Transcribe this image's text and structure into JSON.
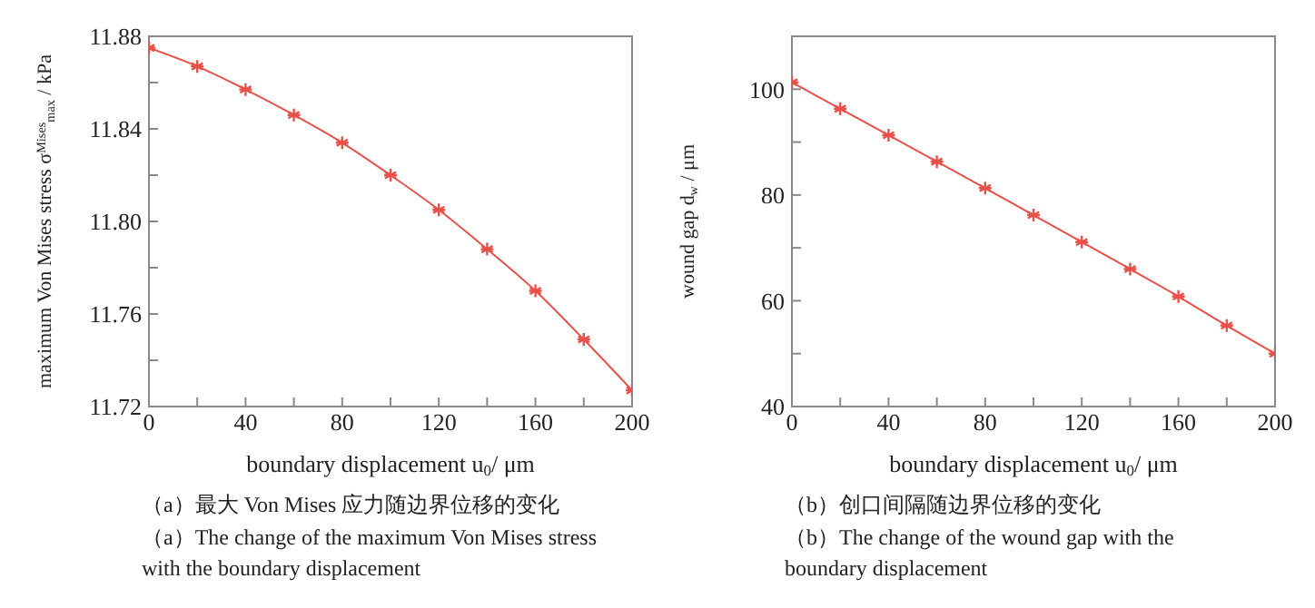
{
  "chart_data": [
    {
      "type": "line",
      "xlabel": "boundary displacement u$_{0}$/ μm",
      "ylabel": "maximum Von Mises stress σ$^{Mises}$$_{max}$ / kPa",
      "x": [
        0,
        20,
        40,
        60,
        80,
        100,
        120,
        140,
        160,
        180,
        200
      ],
      "series": [
        {
          "color": "#e8504a",
          "values": [
            11.875,
            11.867,
            11.857,
            11.846,
            11.834,
            11.82,
            11.805,
            11.788,
            11.77,
            11.749,
            11.727
          ]
        }
      ],
      "xlim": [
        0,
        200
      ],
      "ylim": [
        11.72,
        11.88
      ],
      "xticks": [
        0,
        {
          "value": 20,
          "label": null
        },
        40,
        {
          "value": 60,
          "label": null
        },
        80,
        {
          "value": 100,
          "label": null
        },
        120,
        {
          "value": 140,
          "label": null
        },
        160,
        {
          "value": 180,
          "label": null
        },
        200
      ],
      "yticks": [
        {
          "value": 11.72,
          "label": "11.72"
        },
        {
          "value": 11.74,
          "label": null
        },
        {
          "value": 11.76,
          "label": "11.76"
        },
        {
          "value": 11.78,
          "label": null
        },
        {
          "value": 11.8,
          "label": "11.80"
        },
        {
          "value": 11.82,
          "label": null
        },
        {
          "value": 11.84,
          "label": "11.84"
        },
        {
          "value": 11.86,
          "label": null
        },
        {
          "value": 11.88,
          "label": "11.88"
        }
      ],
      "grid": false,
      "legend": false,
      "marker": "cross",
      "line_style": "solid",
      "annotations": [
        "（a）最大 Von Mises 应力随边界位移的变化",
        "（a）The change of the maximum Von Mises stress with the boundary displacement"
      ]
    },
    {
      "type": "line",
      "xlabel": "boundary displacement u$_{0}$/ μm",
      "ylabel": "wound gap d$_{w}$ / μm",
      "x": [
        0,
        20,
        40,
        60,
        80,
        100,
        120,
        140,
        160,
        180,
        200
      ],
      "series": [
        {
          "color": "#e8504a",
          "values": [
            101.3,
            96.3,
            91.3,
            86.3,
            81.3,
            76.2,
            71.1,
            66.0,
            60.8,
            55.3,
            50.0
          ]
        }
      ],
      "xlim": [
        0,
        200
      ],
      "ylim": [
        40,
        110
      ],
      "xticks": [
        0,
        {
          "value": 20,
          "label": null
        },
        40,
        {
          "value": 60,
          "label": null
        },
        80,
        {
          "value": 100,
          "label": null
        },
        120,
        {
          "value": 140,
          "label": null
        },
        160,
        {
          "value": 180,
          "label": null
        },
        200
      ],
      "yticks": [
        40,
        {
          "value": 50,
          "label": null
        },
        60,
        {
          "value": 70,
          "label": null
        },
        80,
        {
          "value": 90,
          "label": null
        },
        100,
        {
          "value": 110,
          "label": null
        }
      ],
      "grid": false,
      "legend": false,
      "marker": "cross",
      "line_style": "solid",
      "annotations": [
        "（b）创口间隔随边界位移的变化",
        "（b）The change of the wound gap with the boundary displacement"
      ]
    }
  ]
}
